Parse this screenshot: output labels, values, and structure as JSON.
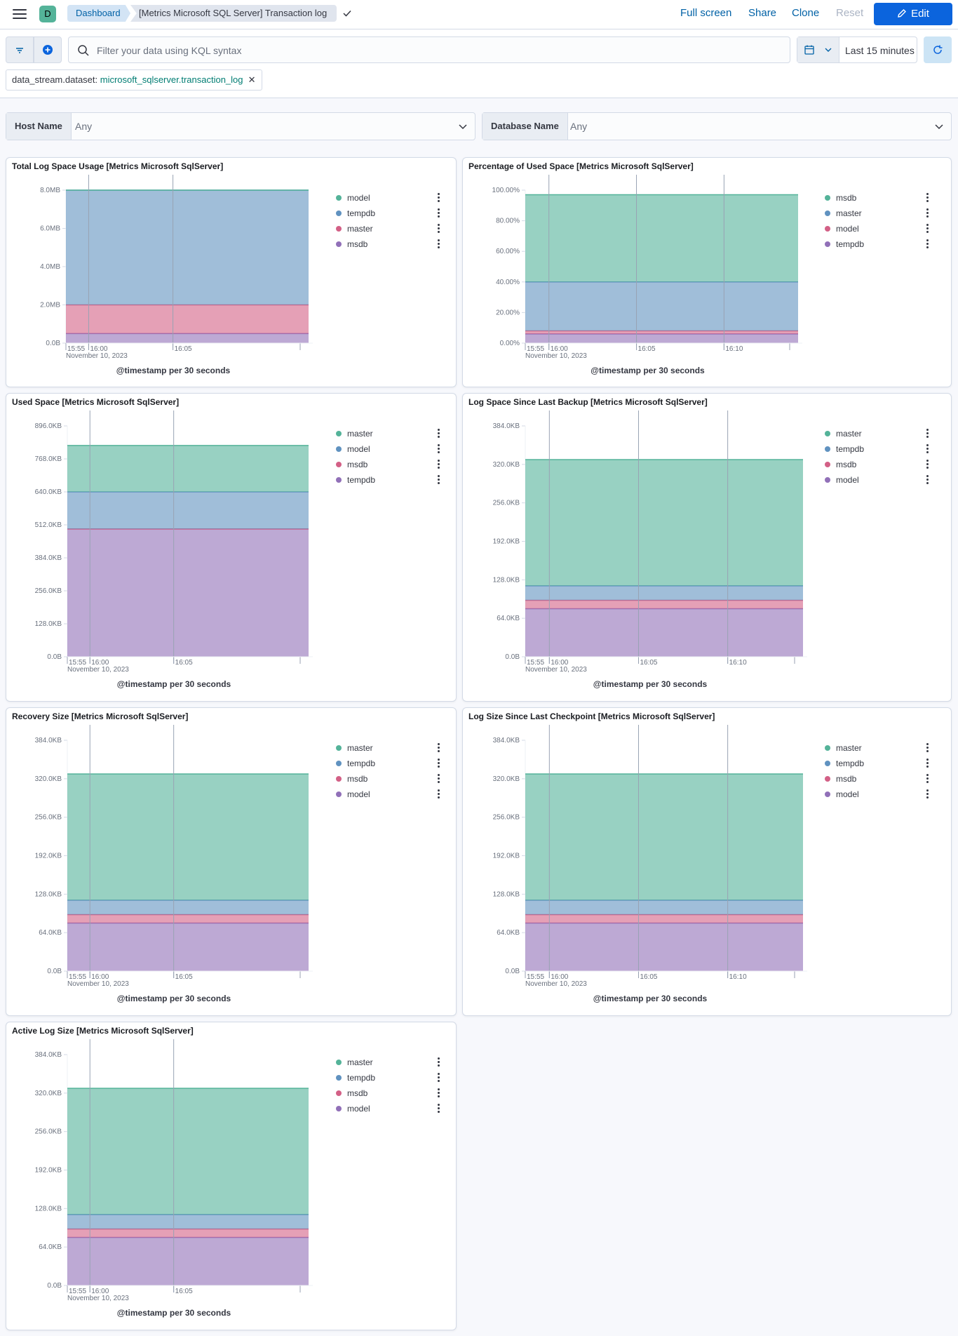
{
  "header": {
    "space_initial": "D",
    "breadcrumb_dashboard": "Dashboard",
    "breadcrumb_title": "[Metrics Microsoft SQL Server] Transaction log",
    "full_screen": "Full screen",
    "share": "Share",
    "clone": "Clone",
    "reset": "Reset",
    "edit": "Edit"
  },
  "query": {
    "placeholder": "Filter your data using KQL syntax",
    "time_range": "Last 15 minutes",
    "filter_field": "data_stream.dataset: ",
    "filter_value": "microsoft_sqlserver.transaction_log"
  },
  "controls": [
    {
      "label": "Host Name",
      "value": "Any"
    },
    {
      "label": "Database Name",
      "value": "Any"
    }
  ],
  "colors": {
    "teal": "#54b399",
    "blue": "#6092c0",
    "pink": "#d36086",
    "purple": "#9170b8"
  },
  "panels": [
    {
      "title": "Total Log Space Usage [Metrics Microsoft SqlServer]",
      "legend": [
        {
          "name": "model",
          "color": "#54b399"
        },
        {
          "name": "tempdb",
          "color": "#6092c0"
        },
        {
          "name": "master",
          "color": "#d36086"
        },
        {
          "name": "msdb",
          "color": "#9170b8"
        }
      ],
      "chart_data": {
        "type": "area",
        "stacked": true,
        "yticks": [
          "0.0B",
          "2.0MB",
          "4.0MB",
          "6.0MB",
          "8.0MB"
        ],
        "ylim": [
          0,
          8
        ],
        "xticks": [
          "15:55",
          "16:00",
          "16:05"
        ],
        "xdate": "November 10, 2023",
        "xlabel": "@timestamp per 30 seconds",
        "series": [
          {
            "name": "msdb",
            "value": 0.5,
            "color": "#9170b8"
          },
          {
            "name": "master",
            "value": 1.5,
            "color": "#d36086"
          },
          {
            "name": "tempdb",
            "value": 6.0,
            "color": "#6092c0"
          },
          {
            "name": "model",
            "value": 0.0,
            "color": "#54b399"
          }
        ]
      }
    },
    {
      "title": "Percentage of Used Space [Metrics Microsoft SqlServer]",
      "legend": [
        {
          "name": "msdb",
          "color": "#54b399"
        },
        {
          "name": "master",
          "color": "#6092c0"
        },
        {
          "name": "model",
          "color": "#d36086"
        },
        {
          "name": "tempdb",
          "color": "#9170b8"
        }
      ],
      "chart_data": {
        "type": "area",
        "stacked": true,
        "yticks": [
          "0.00%",
          "20.00%",
          "40.00%",
          "60.00%",
          "80.00%",
          "100.00%"
        ],
        "ylim": [
          0,
          100
        ],
        "xticks": [
          "15:55",
          "16:00",
          "16:05",
          "16:10"
        ],
        "xdate": "November 10, 2023",
        "xlabel": "@timestamp per 30 seconds",
        "series": [
          {
            "name": "tempdb",
            "value": 6.0,
            "color": "#9170b8"
          },
          {
            "name": "model",
            "value": 2.0,
            "color": "#d36086"
          },
          {
            "name": "master",
            "value": 32.0,
            "color": "#6092c0"
          },
          {
            "name": "msdb",
            "value": 57.0,
            "color": "#54b399"
          }
        ]
      }
    },
    {
      "title": "Used Space [Metrics Microsoft SqlServer]",
      "legend": [
        {
          "name": "master",
          "color": "#54b399"
        },
        {
          "name": "model",
          "color": "#6092c0"
        },
        {
          "name": "msdb",
          "color": "#d36086"
        },
        {
          "name": "tempdb",
          "color": "#9170b8"
        }
      ],
      "chart_data": {
        "type": "area",
        "stacked": true,
        "yticks": [
          "0.0B",
          "128.0KB",
          "256.0KB",
          "384.0KB",
          "512.0KB",
          "640.0KB",
          "768.0KB",
          "896.0KB"
        ],
        "ylim": [
          0,
          896
        ],
        "xticks": [
          "15:55",
          "16:00",
          "16:05"
        ],
        "xdate": "November 10, 2023",
        "xlabel": "@timestamp per 30 seconds",
        "series": [
          {
            "name": "tempdb",
            "value": 496,
            "color": "#9170b8"
          },
          {
            "name": "msdb",
            "value": 0,
            "color": "#d36086"
          },
          {
            "name": "model",
            "value": 144,
            "color": "#6092c0"
          },
          {
            "name": "master",
            "value": 180,
            "color": "#54b399"
          }
        ]
      }
    },
    {
      "title": "Log Space Since Last Backup [Metrics Microsoft SqlServer]",
      "legend": [
        {
          "name": "master",
          "color": "#54b399"
        },
        {
          "name": "tempdb",
          "color": "#6092c0"
        },
        {
          "name": "msdb",
          "color": "#d36086"
        },
        {
          "name": "model",
          "color": "#9170b8"
        }
      ],
      "chart_data": {
        "type": "area",
        "stacked": true,
        "yticks": [
          "0.0B",
          "64.0KB",
          "128.0KB",
          "192.0KB",
          "256.0KB",
          "320.0KB",
          "384.0KB"
        ],
        "ylim": [
          0,
          384
        ],
        "xticks": [
          "15:55",
          "16:00",
          "16:05",
          "16:10"
        ],
        "xdate": "November 10, 2023",
        "xlabel": "@timestamp per 30 seconds",
        "series": [
          {
            "name": "model",
            "value": 80,
            "color": "#9170b8"
          },
          {
            "name": "msdb",
            "value": 14,
            "color": "#d36086"
          },
          {
            "name": "tempdb",
            "value": 24,
            "color": "#6092c0"
          },
          {
            "name": "master",
            "value": 210,
            "color": "#54b399"
          }
        ]
      }
    },
    {
      "title": "Recovery Size [Metrics Microsoft SqlServer]",
      "legend": [
        {
          "name": "master",
          "color": "#54b399"
        },
        {
          "name": "tempdb",
          "color": "#6092c0"
        },
        {
          "name": "msdb",
          "color": "#d36086"
        },
        {
          "name": "model",
          "color": "#9170b8"
        }
      ],
      "chart_data": {
        "type": "area",
        "stacked": true,
        "yticks": [
          "0.0B",
          "64.0KB",
          "128.0KB",
          "192.0KB",
          "256.0KB",
          "320.0KB",
          "384.0KB"
        ],
        "ylim": [
          0,
          384
        ],
        "xticks": [
          "15:55",
          "16:00",
          "16:05"
        ],
        "xdate": "November 10, 2023",
        "xlabel": "@timestamp per 30 seconds",
        "series": [
          {
            "name": "model",
            "value": 80,
            "color": "#9170b8"
          },
          {
            "name": "msdb",
            "value": 14,
            "color": "#d36086"
          },
          {
            "name": "tempdb",
            "value": 24,
            "color": "#6092c0"
          },
          {
            "name": "master",
            "value": 210,
            "color": "#54b399"
          }
        ]
      }
    },
    {
      "title": "Log Size Since Last Checkpoint [Metrics Microsoft SqlServer]",
      "legend": [
        {
          "name": "master",
          "color": "#54b399"
        },
        {
          "name": "tempdb",
          "color": "#6092c0"
        },
        {
          "name": "msdb",
          "color": "#d36086"
        },
        {
          "name": "model",
          "color": "#9170b8"
        }
      ],
      "chart_data": {
        "type": "area",
        "stacked": true,
        "yticks": [
          "0.0B",
          "64.0KB",
          "128.0KB",
          "192.0KB",
          "256.0KB",
          "320.0KB",
          "384.0KB"
        ],
        "ylim": [
          0,
          384
        ],
        "xticks": [
          "15:55",
          "16:00",
          "16:05",
          "16:10"
        ],
        "xdate": "November 10, 2023",
        "xlabel": "@timestamp per 30 seconds",
        "series": [
          {
            "name": "model",
            "value": 80,
            "color": "#9170b8"
          },
          {
            "name": "msdb",
            "value": 14,
            "color": "#d36086"
          },
          {
            "name": "tempdb",
            "value": 24,
            "color": "#6092c0"
          },
          {
            "name": "master",
            "value": 210,
            "color": "#54b399"
          }
        ]
      }
    },
    {
      "title": "Active Log Size [Metrics Microsoft SqlServer]",
      "legend": [
        {
          "name": "master",
          "color": "#54b399"
        },
        {
          "name": "tempdb",
          "color": "#6092c0"
        },
        {
          "name": "msdb",
          "color": "#d36086"
        },
        {
          "name": "model",
          "color": "#9170b8"
        }
      ],
      "chart_data": {
        "type": "area",
        "stacked": true,
        "yticks": [
          "0.0B",
          "64.0KB",
          "128.0KB",
          "192.0KB",
          "256.0KB",
          "320.0KB",
          "384.0KB"
        ],
        "ylim": [
          0,
          384
        ],
        "xticks": [
          "15:55",
          "16:00",
          "16:05"
        ],
        "xdate": "November 10, 2023",
        "xlabel": "@timestamp per 30 seconds",
        "series": [
          {
            "name": "model",
            "value": 80,
            "color": "#9170b8"
          },
          {
            "name": "msdb",
            "value": 14,
            "color": "#d36086"
          },
          {
            "name": "tempdb",
            "value": 24,
            "color": "#6092c0"
          },
          {
            "name": "master",
            "value": 210,
            "color": "#54b399"
          }
        ]
      }
    }
  ]
}
